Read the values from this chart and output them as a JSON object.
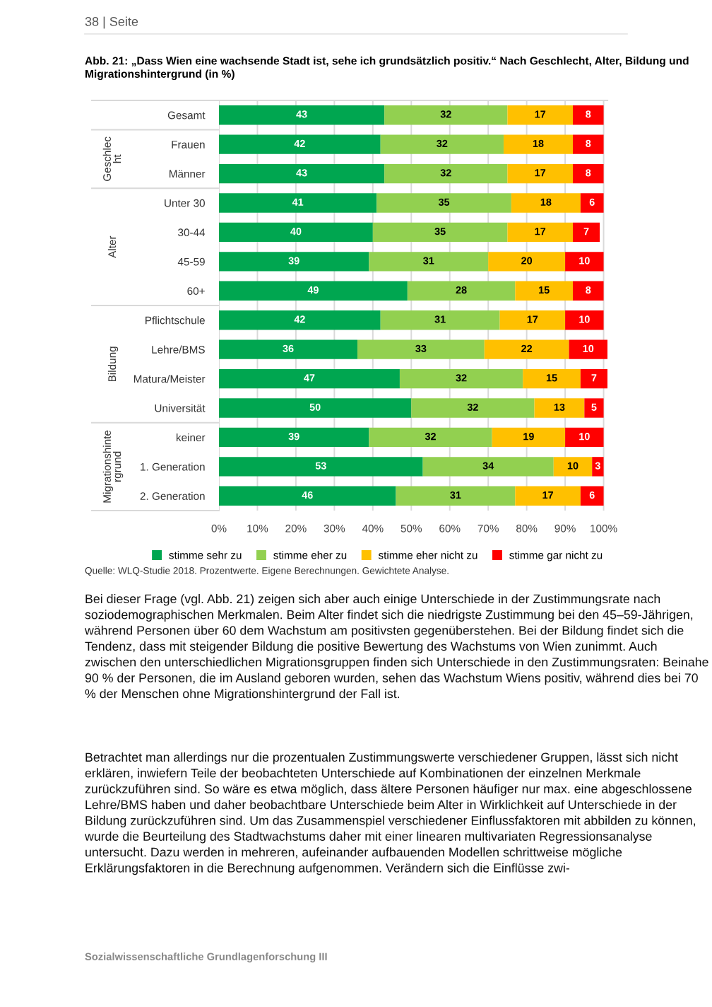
{
  "chart_data": {
    "type": "bar",
    "orientation": "horizontal",
    "stacked": true,
    "data_labels": true,
    "title": "Abb. 21: „Dass Wien eine wachsende Stadt ist, sehe ich grundsätzlich positiv.“ Nach Geschlecht, Alter, Bildung und Migrationshintergrund (in %)",
    "categories": [
      "Gesamt",
      "Frauen",
      "Männer",
      "Unter 30",
      "30-44",
      "45-59",
      "60+",
      "Pflichtschule",
      "Lehre/BMS",
      "Matura/Meister",
      "Universität",
      "keiner",
      "1. Generation",
      "2. Generation"
    ],
    "series": [
      {
        "name": "stimme sehr zu",
        "color": "#00a650",
        "values": [
          43,
          42,
          43,
          41,
          40,
          39,
          49,
          42,
          36,
          47,
          50,
          39,
          53,
          46
        ]
      },
      {
        "name": "stimme eher zu",
        "color": "#92d050",
        "values": [
          32,
          32,
          32,
          35,
          35,
          31,
          28,
          31,
          33,
          32,
          32,
          32,
          34,
          31
        ]
      },
      {
        "name": "stimme eher nicht zu",
        "color": "#ffc000",
        "values": [
          17,
          18,
          17,
          18,
          17,
          20,
          15,
          17,
          22,
          15,
          13,
          19,
          10,
          17
        ]
      },
      {
        "name": "stimme gar nicht zu",
        "color": "#ff0000",
        "values": [
          8,
          8,
          8,
          6,
          7,
          10,
          8,
          10,
          10,
          7,
          5,
          10,
          3,
          6
        ]
      }
    ],
    "xlim": [
      0,
      101
    ],
    "xticks": [
      {
        "value": 0,
        "label": "0%"
      },
      {
        "value": 10,
        "label": "10%"
      },
      {
        "value": 20,
        "label": "20%"
      },
      {
        "value": 30,
        "label": "30%"
      },
      {
        "value": 40,
        "label": "40%"
      },
      {
        "value": 50,
        "label": "50%"
      },
      {
        "value": 60,
        "label": "60%"
      },
      {
        "value": 70,
        "label": "70%"
      },
      {
        "value": 80,
        "label": "80%"
      },
      {
        "value": 90,
        "label": "90%"
      },
      {
        "value": 100,
        "label": "100%"
      }
    ],
    "grid": "x",
    "legend": "bottom",
    "annotations": [
      "38 | Seite",
      "Geschlec\nht",
      "Alter",
      "Bildung",
      "Migrationshinte\nrgrund",
      "Quelle: WLQ-Studie 2018. Prozentwerte. Eigene Berechnungen. Gewichtete Analyse.",
      "Bei dieser Frage (vgl. Abb. 21) zeigen sich aber auch einige Unterschiede in der Zustimmungsrate nach soziodemographischen Merkmalen. Beim Alter findet sich die niedrigste Zustimmung bei den 45–59-Jährigen, während Personen über 60 dem Wachstum am positivsten gegenüberstehen. Bei der Bildung findet sich die Tendenz, dass mit steigender Bildung die positive Bewertung des Wachstums von Wien zunimmt. Auch zwischen den unterschiedlichen Migrationsgruppen finden sich Unterschiede in den Zustimmungsraten: Beinahe 90 % der Personen, die im Ausland geboren wurden, sehen das Wachstum Wiens positiv, während dies bei 70 % der Menschen ohne Migrationshintergrund der Fall ist.",
      "Betrachtet man allerdings nur die prozentualen Zustimmungswerte verschiedener Gruppen, lässt sich nicht erklären, inwiefern Teile der beobachteten Unterschiede auf Kombinationen der einzelnen Merkmale zurückzuführen sind. So wäre es etwa möglich, dass ältere Personen häufiger nur max. eine abgeschlossene Lehre/BMS haben und daher beobachtbare Unterschiede beim Alter in Wirklichkeit auf Unterschiede in der Bildung zurückzuführen sind. Um das Zusammenspiel verschiedener Einflussfaktoren mit abbilden zu können, wurde die Beurteilung des Stadtwachstums daher mit einer linearen multivariaten Regressionsanalyse untersucht. Dazu werden in mehreren, aufeinander aufbauenden Modellen schrittweise mögliche Erklärungsfaktoren in die Berechnung aufgenommen. Verändern sich die Einflüsse zwi-",
      "Sozialwissenschaftliche Grundlagenforschung III"
    ]
  }
}
